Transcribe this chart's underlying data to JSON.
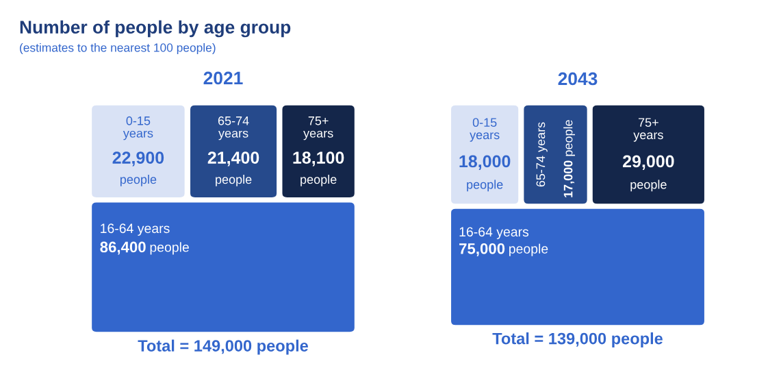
{
  "chart_data": [
    {
      "type": "other",
      "title": "Number of people by age group",
      "subtitle": "(estimates to the nearest 100 people)"
    },
    {
      "type": "other",
      "title": "2021",
      "categories": [
        "0-15 years",
        "65-74 years",
        "75+ years",
        "16-64 years"
      ],
      "values": [
        22900,
        21400,
        18100,
        86400
      ],
      "value_labels": [
        "22,900",
        "21,400",
        "18,100",
        "86,400"
      ],
      "colors": [
        "#d9e2f5",
        "#264a8c",
        "#14264a",
        "#3366cc"
      ],
      "annotations": [
        {
          "text": "people",
          "x": "0-15 years"
        },
        {
          "text": "people",
          "x": "65-74 years"
        },
        {
          "text": "people",
          "x": "75+ years"
        },
        {
          "text": "people",
          "x": "16-64 years"
        },
        "Total = 149,000 people"
      ]
    },
    {
      "type": "other",
      "title": "2043",
      "categories": [
        "0-15 years",
        "65-74 years",
        "75+ years",
        "16-64 years"
      ],
      "values": [
        18000,
        17000,
        29000,
        75000
      ],
      "value_labels": [
        "18,000",
        "17,000",
        "29,000",
        "75,000"
      ],
      "colors": [
        "#d9e2f5",
        "#264a8c",
        "#14264a",
        "#3366cc"
      ],
      "annotations": [
        {
          "text": "people",
          "x": "0-15 years"
        },
        {
          "text": "people",
          "x": "65-74 years"
        },
        {
          "text": "people",
          "x": "75+ years"
        },
        {
          "text": "people",
          "x": "16-64 years"
        },
        "Total = 139,000 people"
      ]
    }
  ]
}
